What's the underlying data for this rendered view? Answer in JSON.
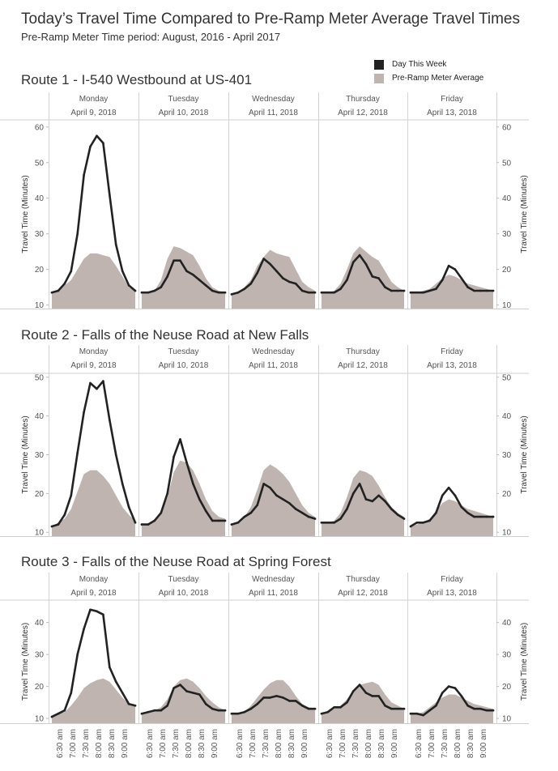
{
  "title": "Today’s Travel Time Compared to Pre-Ramp Meter Average Travel Times",
  "subtitle": "Pre-Ramp Meter Time period: August, 2016 - April 2017",
  "legend": {
    "items": [
      {
        "label": "Day This Week",
        "color": "#222222"
      },
      {
        "label": "Pre-Ramp Meter Average",
        "color": "#bfb4b0"
      }
    ]
  },
  "colors": {
    "line": "#222222",
    "area": "#bfb4b0",
    "grid": "#d9d9d9",
    "text": "#555555"
  },
  "chart_data": [
    {
      "type": "area",
      "title": "Route 1 - I-540 Westbound at US-401",
      "ylabel": "Travel Time (Minutes)",
      "ylim": [
        9,
        62
      ],
      "yticks": [
        10,
        20,
        30,
        40,
        50,
        60
      ],
      "x": [
        "6:30 am",
        "7:00 am",
        "7:30 am",
        "8:00 am",
        "8:30 am",
        "9:00 am"
      ],
      "panels": [
        {
          "day": "Monday",
          "date": "April 9, 2018",
          "actual": [
            13.5,
            14,
            16,
            19.5,
            30,
            46.5,
            54.5,
            57.5,
            55.5,
            41,
            27,
            19.5,
            15.5,
            14
          ],
          "average": [
            13.5,
            14,
            15.5,
            17,
            20,
            23,
            24.5,
            24.5,
            24,
            23.5,
            21,
            18,
            15,
            14
          ]
        },
        {
          "day": "Tuesday",
          "date": "April 10, 2018",
          "actual": [
            13.5,
            13.5,
            14,
            15,
            18,
            22.5,
            22.5,
            19.5,
            18.5,
            17,
            15.5,
            14,
            13.5,
            13.5
          ],
          "average": [
            13.5,
            13.5,
            14,
            17,
            23,
            26.5,
            26,
            25,
            24,
            21,
            17.5,
            15,
            14,
            13.5
          ]
        },
        {
          "day": "Wednesday",
          "date": "April 11, 2018",
          "actual": [
            13,
            13.5,
            14.5,
            16,
            19,
            23,
            21.5,
            19.5,
            17.5,
            16.5,
            16,
            14,
            13.5,
            13.5
          ],
          "average": [
            13,
            13.5,
            15,
            17,
            21,
            23.5,
            25.5,
            24.5,
            24,
            23.5,
            20,
            16.5,
            15,
            14
          ]
        },
        {
          "day": "Thursday",
          "date": "April 12, 2018",
          "actual": [
            13.5,
            13.5,
            13.5,
            14.5,
            17,
            22,
            24,
            21.5,
            18,
            17.5,
            15,
            14,
            14,
            14
          ],
          "average": [
            13.5,
            13.5,
            14,
            16,
            20,
            24.5,
            26.5,
            25,
            23.5,
            22.5,
            19.5,
            16.5,
            15,
            14
          ]
        },
        {
          "day": "Friday",
          "date": "April 13, 2018",
          "actual": [
            13.5,
            13.5,
            13.5,
            14,
            14.5,
            17,
            21,
            20,
            17.5,
            15,
            14,
            14,
            14,
            14
          ],
          "average": [
            13.5,
            13.5,
            14,
            14.5,
            16,
            17.5,
            18.5,
            18,
            17,
            16,
            15.5,
            15,
            14.5,
            14
          ]
        }
      ]
    },
    {
      "type": "area",
      "title": "Route 2 - Falls of the Neuse Road at New Falls",
      "ylabel": "Travel Time (Minutes)",
      "ylim": [
        9,
        51
      ],
      "yticks": [
        10,
        20,
        30,
        40,
        50
      ],
      "x": [
        "6:30 am",
        "7:00 am",
        "7:30 am",
        "8:00 am",
        "8:30 am",
        "9:00 am"
      ],
      "panels": [
        {
          "day": "Monday",
          "date": "April 9, 2018",
          "actual": [
            11.5,
            12,
            14.5,
            19.5,
            30.5,
            41,
            48.5,
            47,
            49,
            39,
            30,
            22.5,
            16.5,
            12.5
          ],
          "average": [
            11.5,
            12.5,
            13.5,
            16,
            20.5,
            25,
            26,
            26,
            24.5,
            22.5,
            19.5,
            16.5,
            14.5,
            13
          ]
        },
        {
          "day": "Tuesday",
          "date": "April 10, 2018",
          "actual": [
            12,
            12,
            13,
            15,
            20,
            29.5,
            34,
            28,
            22.5,
            18.5,
            15.5,
            13,
            13,
            13
          ],
          "average": [
            12,
            12,
            13,
            15,
            19,
            25.5,
            28.5,
            28,
            26,
            22.5,
            18.5,
            15.5,
            14,
            13.5
          ]
        },
        {
          "day": "Wednesday",
          "date": "April 11, 2018",
          "actual": [
            12,
            12.5,
            14,
            15,
            17,
            22.5,
            21.5,
            19.5,
            18.5,
            17.5,
            16,
            15,
            14,
            13.5
          ],
          "average": [
            12,
            12.5,
            14,
            16.5,
            21,
            26,
            27.5,
            26.5,
            25,
            23,
            20,
            17,
            15,
            14
          ]
        },
        {
          "day": "Thursday",
          "date": "April 12, 2018",
          "actual": [
            12.5,
            12.5,
            12.5,
            13.5,
            16,
            20,
            22.5,
            18.5,
            18,
            19.5,
            18,
            16,
            14.5,
            13.5
          ],
          "average": [
            12.5,
            12.5,
            13,
            15,
            19,
            24,
            26,
            25.5,
            24.5,
            22,
            19,
            16.5,
            15,
            14
          ]
        },
        {
          "day": "Friday",
          "date": "April 13, 2018",
          "actual": [
            11.5,
            12.5,
            12.5,
            13,
            15,
            19.5,
            21.5,
            19.5,
            16.5,
            15,
            14,
            14,
            14,
            14
          ],
          "average": [
            11.5,
            12,
            12.5,
            13.5,
            15.5,
            17.5,
            18.5,
            18,
            17,
            16,
            15.5,
            15,
            14.5,
            14
          ]
        }
      ]
    },
    {
      "type": "area",
      "title": "Route 3 - Falls of the Neuse Road at Spring Forest",
      "ylabel": "Travel Time (Minutes)",
      "ylim": [
        8.5,
        47
      ],
      "yticks": [
        10,
        20,
        30,
        40
      ],
      "x": [
        "6:30 am",
        "7:00 am",
        "7:30 am",
        "8:00 am",
        "8:30 am",
        "9:00 am"
      ],
      "panels": [
        {
          "day": "Monday",
          "date": "April 9, 2018",
          "actual": [
            10.5,
            11.5,
            12.5,
            18,
            30,
            38,
            44,
            43.5,
            42.5,
            26,
            21.5,
            18,
            14.5,
            14
          ],
          "average": [
            10.5,
            11.5,
            12,
            14,
            16.5,
            19.5,
            21,
            22,
            22.5,
            21.5,
            19,
            16.5,
            14.5,
            14
          ]
        },
        {
          "day": "Tuesday",
          "date": "April 10, 2018",
          "actual": [
            11.5,
            12,
            12.5,
            12.5,
            14,
            19.5,
            20.5,
            18.5,
            18,
            17.5,
            14.5,
            13,
            12.5,
            12.5
          ],
          "average": [
            11.5,
            12,
            12.5,
            13.5,
            16,
            20,
            22,
            22.5,
            21.5,
            19.5,
            17,
            15,
            13.5,
            12.5
          ]
        },
        {
          "day": "Wednesday",
          "date": "April 11, 2018",
          "actual": [
            11.5,
            11.5,
            12,
            13,
            14.5,
            16.5,
            16.5,
            17,
            16.5,
            15.5,
            15.5,
            14,
            13,
            13
          ],
          "average": [
            11.5,
            11.5,
            12,
            14,
            16.5,
            19,
            21,
            22,
            22,
            20,
            17,
            14.5,
            13.5,
            13
          ]
        },
        {
          "day": "Thursday",
          "date": "April 12, 2018",
          "actual": [
            11.5,
            12,
            13.5,
            13.5,
            15,
            18.5,
            20.5,
            18,
            17,
            17,
            14,
            13,
            13,
            13
          ],
          "average": [
            11.5,
            12,
            13,
            14,
            16,
            18.5,
            20.5,
            21,
            21.5,
            20.5,
            17.5,
            15,
            14,
            13
          ]
        },
        {
          "day": "Friday",
          "date": "April 13, 2018",
          "actual": [
            11.5,
            11.5,
            11,
            12.5,
            14,
            18,
            20,
            19.5,
            17,
            14,
            13,
            13,
            12.5,
            12.5
          ],
          "average": [
            11.5,
            11.5,
            12,
            13.5,
            15,
            16.5,
            17.5,
            17.5,
            16.5,
            15.5,
            14.5,
            14,
            13.5,
            13
          ]
        }
      ]
    }
  ]
}
